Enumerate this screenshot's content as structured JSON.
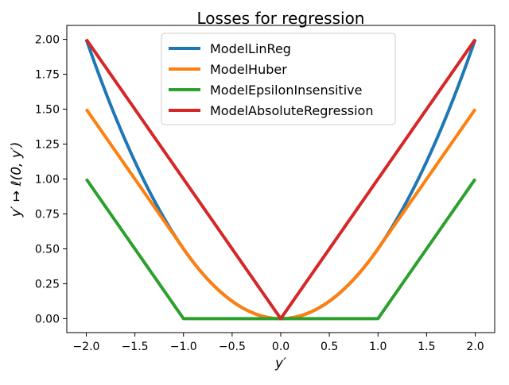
{
  "chart_data": {
    "type": "line",
    "title": "Losses for regression",
    "xlabel": "y′",
    "ylabel": "y′ ↦ ℓ(0, y′)",
    "xlim": [
      -2.2,
      2.2
    ],
    "ylim": [
      -0.1,
      2.1
    ],
    "xticks": [
      -2.0,
      -1.5,
      -1.0,
      -0.5,
      0.0,
      0.5,
      1.0,
      1.5,
      2.0
    ],
    "xtick_labels": [
      "−2.0",
      "−1.5",
      "−1.0",
      "−0.5",
      "0.0",
      "0.5",
      "1.0",
      "1.5",
      "2.0"
    ],
    "yticks": [
      0.0,
      0.25,
      0.5,
      0.75,
      1.0,
      1.25,
      1.5,
      1.75,
      2.0
    ],
    "ytick_labels": [
      "0.00",
      "0.25",
      "0.50",
      "0.75",
      "1.00",
      "1.25",
      "1.50",
      "1.75",
      "2.00"
    ],
    "grid": false,
    "legend_position": "top-center",
    "x": [
      -2.0,
      -1.5,
      -1.0,
      -0.5,
      0.0,
      0.5,
      1.0,
      1.5,
      2.0
    ],
    "series": [
      {
        "name": "ModelLinReg",
        "color": "#1f77b4",
        "values": [
          2.0,
          1.125,
          0.5,
          0.125,
          0.0,
          0.125,
          0.5,
          1.125,
          2.0
        ]
      },
      {
        "name": "ModelHuber",
        "color": "#ff7f0e",
        "values": [
          1.5,
          1.0,
          0.5,
          0.125,
          0.0,
          0.125,
          0.5,
          1.0,
          1.5
        ]
      },
      {
        "name": "ModelEpsilonInsensitive",
        "color": "#2ca02c",
        "values": [
          1.0,
          0.5,
          0.0,
          0.0,
          0.0,
          0.0,
          0.0,
          0.5,
          1.0
        ]
      },
      {
        "name": "ModelAbsoluteRegression",
        "color": "#d62728",
        "values": [
          2.0,
          1.5,
          1.0,
          0.5,
          0.0,
          0.5,
          1.0,
          1.5,
          2.0
        ]
      }
    ]
  }
}
